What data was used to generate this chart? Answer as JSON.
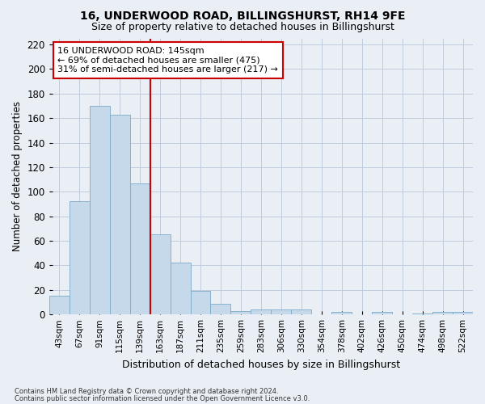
{
  "title": "16, UNDERWOOD ROAD, BILLINGSHURST, RH14 9FE",
  "subtitle": "Size of property relative to detached houses in Billingshurst",
  "xlabel": "Distribution of detached houses by size in Billingshurst",
  "ylabel": "Number of detached properties",
  "footnote1": "Contains HM Land Registry data © Crown copyright and database right 2024.",
  "footnote2": "Contains public sector information licensed under the Open Government Licence v3.0.",
  "categories": [
    "43sqm",
    "67sqm",
    "91sqm",
    "115sqm",
    "139sqm",
    "163sqm",
    "187sqm",
    "211sqm",
    "235sqm",
    "259sqm",
    "283sqm",
    "306sqm",
    "330sqm",
    "354sqm",
    "378sqm",
    "402sqm",
    "426sqm",
    "450sqm",
    "474sqm",
    "498sqm",
    "522sqm"
  ],
  "values": [
    15,
    92,
    170,
    163,
    107,
    65,
    42,
    19,
    9,
    3,
    4,
    4,
    4,
    0,
    2,
    0,
    2,
    0,
    1,
    2,
    2
  ],
  "bar_color": "#c6d9ea",
  "bar_edge_color": "#7aaac8",
  "grid_color": "#bfcadb",
  "vline_x_index": 4.5,
  "vline_color": "#cc0000",
  "annotation_text": "16 UNDERWOOD ROAD: 145sqm\n← 69% of detached houses are smaller (475)\n31% of semi-detached houses are larger (217) →",
  "annotation_box_color": "#ffffff",
  "annotation_box_edge": "#cc0000",
  "ylim": [
    0,
    225
  ],
  "yticks": [
    0,
    20,
    40,
    60,
    80,
    100,
    120,
    140,
    160,
    180,
    200,
    220
  ],
  "background_color": "#eaeef5",
  "fig_width": 6.0,
  "fig_height": 5.0,
  "dpi": 100
}
